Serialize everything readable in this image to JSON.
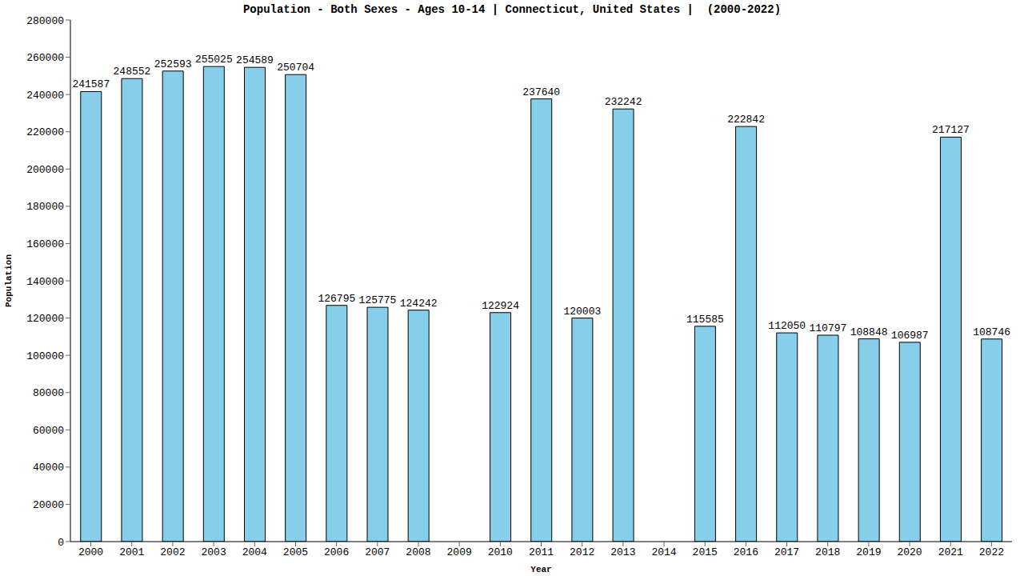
{
  "chart_data": {
    "type": "bar",
    "title": "Population - Both Sexes - Ages 10-14 | Connecticut, United States |  (2000-2022)",
    "x_label": "Year",
    "y_label": "Population",
    "categories": [
      "2000",
      "2001",
      "2002",
      "2003",
      "2004",
      "2005",
      "2006",
      "2007",
      "2008",
      "2009",
      "2010",
      "2011",
      "2012",
      "2013",
      "2014",
      "2015",
      "2016",
      "2017",
      "2018",
      "2019",
      "2020",
      "2021",
      "2022"
    ],
    "values": [
      241587,
      248552,
      252593,
      255025,
      254589,
      250704,
      126795,
      125775,
      124242,
      0,
      122924,
      237640,
      120003,
      232242,
      0,
      115585,
      222842,
      112050,
      110797,
      108848,
      106987,
      217127,
      108746
    ],
    "color": "#87ceeb",
    "ylim": [
      0,
      280000
    ],
    "yticks": [
      0,
      20000,
      40000,
      60000,
      80000,
      100000,
      120000,
      140000,
      160000,
      180000,
      200000,
      220000,
      240000,
      260000,
      280000
    ],
    "grid": false,
    "data_labels": true
  }
}
